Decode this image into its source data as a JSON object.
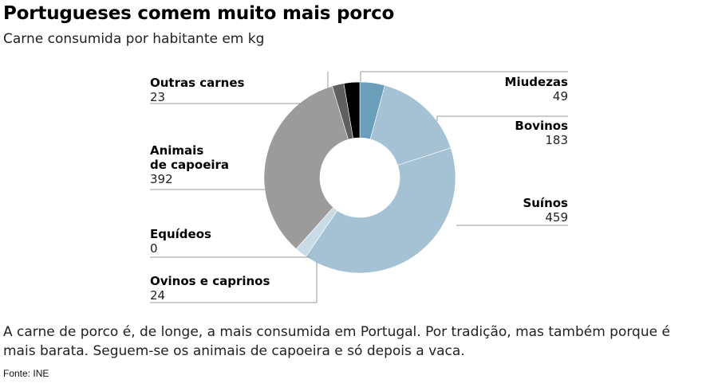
{
  "title": "Portugueses comem muito mais porco",
  "subtitle": "Carne consumida por habitante em kg",
  "note": "A carne de porco é, de longe, a mais consumida em Portugal. Por tradição, mas também porque é mais barata. Seguem-se os animais de capoeira e só depois a vaca.",
  "source": "Fonte: INE",
  "chart_data": {
    "type": "pie",
    "donut": true,
    "unit": "kg",
    "slices": [
      {
        "label": "Miudezas",
        "value": 49,
        "color": "#6a9fbc"
      },
      {
        "label": "Bovinos",
        "value": 183,
        "color": "#a5c1d4"
      },
      {
        "label": "Suínos",
        "value": 459,
        "color": "#a5c1d4"
      },
      {
        "label": "Ovinos e caprinos",
        "value": 24,
        "color": "#c9dbe7"
      },
      {
        "label": "Equídeos",
        "value": 0,
        "color": "#bdbdbd"
      },
      {
        "label": "Animais de capoeira",
        "value": 392,
        "color": "#9c9b9b"
      },
      {
        "label": "Outras carnes",
        "value": 23,
        "color": "#5f5f5f"
      },
      {
        "label": "",
        "value": 31,
        "color": "#000000"
      }
    ]
  }
}
